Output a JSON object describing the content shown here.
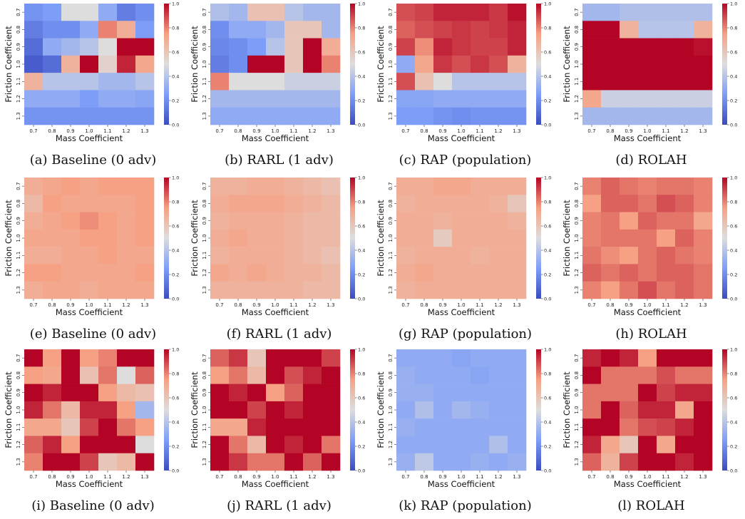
{
  "chart_data": [
    {
      "type": "heatmap",
      "caption": "(a) Baseline (0 adv)",
      "xlabel": "Mass Coefficient",
      "ylabel": "Friction Coefficient",
      "x": [
        "0.7",
        "0.8",
        "0.9",
        "1.0",
        "1.1",
        "1.2",
        "1.3"
      ],
      "y": [
        "0.7",
        "0.8",
        "0.9",
        "1.0",
        "1.1",
        "1.2",
        "1.3"
      ],
      "colorbar": {
        "min": 0.0,
        "max": 1.0,
        "ticks": [
          "0.0",
          "0.2",
          "0.4",
          "0.6",
          "0.8",
          "1.0"
        ],
        "colormap": "coolwarm"
      },
      "values": [
        [
          0.22,
          0.25,
          0.5,
          0.5,
          0.3,
          0.15,
          0.2
        ],
        [
          0.15,
          0.2,
          0.2,
          0.3,
          0.8,
          0.7,
          0.25
        ],
        [
          0.1,
          0.3,
          0.35,
          0.4,
          0.5,
          1.0,
          1.0
        ],
        [
          0.05,
          0.1,
          0.68,
          1.0,
          0.55,
          0.95,
          0.72
        ],
        [
          0.68,
          0.4,
          0.4,
          0.4,
          0.35,
          0.35,
          0.4
        ],
        [
          0.3,
          0.3,
          0.3,
          0.25,
          0.3,
          0.3,
          0.28
        ],
        [
          0.22,
          0.22,
          0.22,
          0.22,
          0.22,
          0.22,
          0.22
        ]
      ]
    },
    {
      "type": "heatmap",
      "caption": "(b) RARL (1 adv)",
      "xlabel": "Mass Coefficient",
      "ylabel": "Friction Coefficient",
      "x": [
        "0.7",
        "0.8",
        "0.9",
        "1.0",
        "1.1",
        "1.2",
        "1.3"
      ],
      "y": [
        "0.7",
        "0.8",
        "0.9",
        "1.0",
        "1.1",
        "1.2",
        "1.3"
      ],
      "colorbar": {
        "min": 0.0,
        "max": 1.0,
        "ticks": [
          "0.0",
          "0.2",
          "0.4",
          "0.6",
          "0.8",
          "1.0"
        ],
        "colormap": "coolwarm"
      },
      "values": [
        [
          0.38,
          0.35,
          0.62,
          0.62,
          0.4,
          0.35,
          0.35
        ],
        [
          0.2,
          0.3,
          0.3,
          0.35,
          0.6,
          0.6,
          0.35
        ],
        [
          0.18,
          0.2,
          0.25,
          0.4,
          0.6,
          1.0,
          0.7
        ],
        [
          0.15,
          0.2,
          1.0,
          1.0,
          0.6,
          1.0,
          0.8
        ],
        [
          0.8,
          0.5,
          0.5,
          0.5,
          0.45,
          0.45,
          0.45
        ],
        [
          0.35,
          0.35,
          0.35,
          0.35,
          0.35,
          0.35,
          0.35
        ],
        [
          0.3,
          0.3,
          0.3,
          0.3,
          0.3,
          0.3,
          0.3
        ]
      ]
    },
    {
      "type": "heatmap",
      "caption": "(c) RAP (population)",
      "xlabel": "Mass Coefficient",
      "ylabel": "Friction Coefficient",
      "x": [
        "0.7",
        "0.8",
        "0.9",
        "1.0",
        "1.1",
        "1.2",
        "1.3"
      ],
      "y": [
        "0.7",
        "0.8",
        "0.9",
        "1.0",
        "1.1",
        "1.2",
        "1.3"
      ],
      "colorbar": {
        "min": 0.0,
        "max": 1.0,
        "ticks": [
          "0.0",
          "0.2",
          "0.4",
          "0.6",
          "0.8",
          "1.0"
        ],
        "colormap": "coolwarm"
      },
      "values": [
        [
          0.88,
          0.9,
          0.95,
          0.95,
          0.95,
          0.92,
          0.98
        ],
        [
          0.85,
          0.88,
          0.9,
          0.92,
          0.9,
          0.92,
          0.95
        ],
        [
          0.9,
          0.78,
          0.95,
          0.92,
          0.9,
          0.9,
          0.95
        ],
        [
          0.3,
          0.72,
          0.92,
          0.88,
          0.92,
          0.88,
          0.68
        ],
        [
          0.88,
          0.62,
          0.5,
          0.4,
          0.4,
          0.4,
          0.4
        ],
        [
          0.28,
          0.28,
          0.3,
          0.3,
          0.3,
          0.3,
          0.3
        ],
        [
          0.25,
          0.25,
          0.22,
          0.2,
          0.22,
          0.22,
          0.22
        ]
      ]
    },
    {
      "type": "heatmap",
      "caption": "(d) ROLAH",
      "xlabel": "Mass Coefficient",
      "ylabel": "Friction Coefficient",
      "x": [
        "0.7",
        "0.8",
        "0.9",
        "1.0",
        "1.1",
        "1.2",
        "1.3"
      ],
      "y": [
        "0.7",
        "0.8",
        "0.9",
        "1.0",
        "1.1",
        "1.2",
        "1.3"
      ],
      "colorbar": {
        "min": 0.0,
        "max": 1.0,
        "ticks": [
          "0.0",
          "0.2",
          "0.4",
          "0.6",
          "0.8",
          "1.0"
        ],
        "colormap": "coolwarm"
      },
      "values": [
        [
          0.35,
          0.35,
          0.38,
          0.38,
          0.38,
          0.38,
          0.38
        ],
        [
          1.0,
          1.0,
          0.68,
          0.4,
          0.4,
          0.4,
          0.68
        ],
        [
          1.0,
          1.0,
          1.0,
          1.0,
          1.0,
          1.0,
          0.98
        ],
        [
          1.0,
          1.0,
          1.0,
          1.0,
          1.0,
          1.0,
          1.0
        ],
        [
          1.0,
          1.0,
          1.0,
          1.0,
          1.0,
          1.0,
          1.0
        ],
        [
          0.72,
          0.45,
          0.45,
          0.45,
          0.45,
          0.45,
          0.45
        ],
        [
          0.35,
          0.35,
          0.35,
          0.35,
          0.35,
          0.35,
          0.35
        ]
      ]
    },
    {
      "type": "heatmap",
      "caption": "(e) Baseline (0 adv)",
      "xlabel": "Mass Coefficient",
      "ylabel": "Friction Coefficient",
      "x": [
        "0.7",
        "0.8",
        "0.9",
        "1.0",
        "1.1",
        "1.2",
        "1.3"
      ],
      "y": [
        "0.7",
        "0.8",
        "0.9",
        "1.0",
        "1.1",
        "1.2",
        "1.3"
      ],
      "colorbar": {
        "min": 0.0,
        "max": 1.0,
        "ticks": [
          "0.0",
          "0.2",
          "0.4",
          "0.6",
          "0.8",
          "1.0"
        ],
        "colormap": "coolwarm"
      },
      "values": [
        [
          0.7,
          0.72,
          0.75,
          0.72,
          0.75,
          0.75,
          0.75
        ],
        [
          0.65,
          0.75,
          0.72,
          0.72,
          0.72,
          0.72,
          0.75
        ],
        [
          0.7,
          0.72,
          0.75,
          0.78,
          0.75,
          0.72,
          0.75
        ],
        [
          0.72,
          0.72,
          0.72,
          0.75,
          0.75,
          0.72,
          0.75
        ],
        [
          0.7,
          0.7,
          0.72,
          0.72,
          0.75,
          0.72,
          0.72
        ],
        [
          0.75,
          0.75,
          0.72,
          0.72,
          0.72,
          0.72,
          0.75
        ],
        [
          0.7,
          0.72,
          0.72,
          0.7,
          0.72,
          0.72,
          0.72
        ]
      ]
    },
    {
      "type": "heatmap",
      "caption": "(f) RARL (1 adv)",
      "xlabel": "Mass Coefficient",
      "ylabel": "Friction Coefficient",
      "x": [
        "0.7",
        "0.8",
        "0.9",
        "1.0",
        "1.1",
        "1.2",
        "1.3"
      ],
      "y": [
        "0.7",
        "0.8",
        "0.9",
        "1.0",
        "1.1",
        "1.2",
        "1.3"
      ],
      "colorbar": {
        "min": 0.0,
        "max": 1.0,
        "ticks": [
          "0.0",
          "0.2",
          "0.4",
          "0.6",
          "0.8",
          "1.0"
        ],
        "colormap": "coolwarm"
      },
      "values": [
        [
          0.68,
          0.68,
          0.7,
          0.7,
          0.68,
          0.65,
          0.62
        ],
        [
          0.7,
          0.72,
          0.72,
          0.72,
          0.7,
          0.68,
          0.65
        ],
        [
          0.68,
          0.7,
          0.7,
          0.7,
          0.68,
          0.65,
          0.65
        ],
        [
          0.7,
          0.72,
          0.7,
          0.7,
          0.68,
          0.65,
          0.65
        ],
        [
          0.68,
          0.7,
          0.7,
          0.7,
          0.68,
          0.65,
          0.62
        ],
        [
          0.72,
          0.7,
          0.72,
          0.7,
          0.68,
          0.68,
          0.65
        ],
        [
          0.68,
          0.68,
          0.68,
          0.68,
          0.68,
          0.65,
          0.65
        ]
      ]
    },
    {
      "type": "heatmap",
      "caption": "(g) RAP (population)",
      "xlabel": "Mass Coefficient",
      "ylabel": "Friction Coefficient",
      "x": [
        "0.7",
        "0.8",
        "0.9",
        "1.0",
        "1.1",
        "1.2",
        "1.3"
      ],
      "y": [
        "0.7",
        "0.8",
        "0.9",
        "1.0",
        "1.1",
        "1.2",
        "1.3"
      ],
      "colorbar": {
        "min": 0.0,
        "max": 1.0,
        "ticks": [
          "0.0",
          "0.2",
          "0.4",
          "0.6",
          "0.8",
          "1.0"
        ],
        "colormap": "coolwarm"
      },
      "values": [
        [
          0.7,
          0.7,
          0.72,
          0.72,
          0.7,
          0.7,
          0.7
        ],
        [
          0.68,
          0.7,
          0.7,
          0.7,
          0.7,
          0.68,
          0.6
        ],
        [
          0.7,
          0.7,
          0.68,
          0.7,
          0.7,
          0.7,
          0.68
        ],
        [
          0.7,
          0.7,
          0.58,
          0.7,
          0.7,
          0.7,
          0.7
        ],
        [
          0.68,
          0.7,
          0.7,
          0.7,
          0.68,
          0.7,
          0.7
        ],
        [
          0.7,
          0.72,
          0.7,
          0.7,
          0.7,
          0.7,
          0.7
        ],
        [
          0.68,
          0.7,
          0.7,
          0.7,
          0.7,
          0.7,
          0.7
        ]
      ]
    },
    {
      "type": "heatmap",
      "caption": "(h) ROLAH",
      "xlabel": "Mass Coefficient",
      "ylabel": "Friction Coefficient",
      "x": [
        "0.7",
        "0.8",
        "0.9",
        "1.0",
        "1.1",
        "1.2",
        "1.3"
      ],
      "y": [
        "0.7",
        "0.8",
        "0.9",
        "1.0",
        "1.1",
        "1.2",
        "1.3"
      ],
      "colorbar": {
        "min": 0.0,
        "max": 1.0,
        "ticks": [
          "0.0",
          "0.2",
          "0.4",
          "0.6",
          "0.8",
          "1.0"
        ],
        "colormap": "coolwarm"
      },
      "values": [
        [
          0.8,
          0.85,
          0.82,
          0.8,
          0.82,
          0.82,
          0.8
        ],
        [
          0.75,
          0.85,
          0.85,
          0.82,
          0.88,
          0.85,
          0.8
        ],
        [
          0.8,
          0.82,
          0.75,
          0.85,
          0.82,
          0.82,
          0.72
        ],
        [
          0.8,
          0.82,
          0.82,
          0.82,
          0.75,
          0.85,
          0.8
        ],
        [
          0.82,
          0.78,
          0.75,
          0.82,
          0.85,
          0.82,
          0.8
        ],
        [
          0.85,
          0.82,
          0.85,
          0.82,
          0.85,
          0.85,
          0.82
        ],
        [
          0.8,
          0.75,
          0.82,
          0.88,
          0.82,
          0.85,
          0.82
        ]
      ]
    },
    {
      "type": "heatmap",
      "caption": "(i) Baseline (0 adv)",
      "xlabel": "Mass Coefficient",
      "ylabel": "Friction Coefficient",
      "x": [
        "0.7",
        "0.8",
        "0.9",
        "1.0",
        "1.1",
        "1.2",
        "1.3"
      ],
      "y": [
        "0.7",
        "0.8",
        "0.9",
        "1.0",
        "1.1",
        "1.2",
        "1.3"
      ],
      "colorbar": {
        "min": 0.0,
        "max": 1.0,
        "ticks": [
          "0.0",
          "0.2",
          "0.4",
          "0.6",
          "0.8",
          "1.0"
        ],
        "colormap": "coolwarm"
      },
      "values": [
        [
          1.0,
          0.75,
          1.0,
          0.75,
          0.8,
          1.0,
          1.0
        ],
        [
          0.75,
          0.72,
          1.0,
          0.62,
          0.82,
          0.5,
          0.85
        ],
        [
          1.0,
          0.95,
          1.0,
          1.0,
          0.75,
          0.65,
          0.62
        ],
        [
          0.95,
          0.82,
          0.65,
          0.95,
          0.95,
          0.75,
          0.35
        ],
        [
          0.72,
          0.72,
          0.6,
          0.9,
          1.0,
          0.82,
          0.75
        ],
        [
          0.85,
          0.95,
          0.75,
          1.0,
          1.0,
          1.0,
          0.5
        ],
        [
          0.8,
          1.0,
          1.0,
          0.9,
          0.6,
          0.65,
          1.0
        ]
      ]
    },
    {
      "type": "heatmap",
      "caption": "(j) RARL (1 adv)",
      "xlabel": "Mass Coefficient",
      "ylabel": "Friction Coefficient",
      "x": [
        "0.7",
        "0.8",
        "0.9",
        "1.0",
        "1.1",
        "1.2",
        "1.3"
      ],
      "y": [
        "0.7",
        "0.8",
        "0.9",
        "1.0",
        "1.1",
        "1.2",
        "1.3"
      ],
      "colorbar": {
        "min": 0.0,
        "max": 1.0,
        "ticks": [
          "0.0",
          "0.2",
          "0.4",
          "0.6",
          "0.8",
          "1.0"
        ],
        "colormap": "coolwarm"
      },
      "values": [
        [
          0.85,
          0.92,
          0.6,
          1.0,
          1.0,
          1.0,
          0.9
        ],
        [
          0.75,
          0.82,
          0.65,
          1.0,
          0.88,
          0.95,
          1.0
        ],
        [
          1.0,
          0.95,
          1.0,
          0.75,
          0.85,
          1.0,
          1.0
        ],
        [
          1.0,
          1.0,
          0.9,
          1.0,
          0.95,
          1.0,
          1.0
        ],
        [
          0.72,
          0.72,
          0.95,
          1.0,
          1.0,
          1.0,
          1.0
        ],
        [
          1.0,
          0.82,
          0.65,
          1.0,
          0.95,
          1.0,
          0.82
        ],
        [
          1.0,
          0.92,
          0.82,
          0.82,
          1.0,
          0.85,
          1.0
        ]
      ]
    },
    {
      "type": "heatmap",
      "caption": "(k) RAP (population)",
      "xlabel": "Mass Coefficient",
      "ylabel": "Friction Coefficient",
      "x": [
        "0.7",
        "0.8",
        "0.9",
        "1.0",
        "1.1",
        "1.2",
        "1.3"
      ],
      "y": [
        "0.7",
        "0.8",
        "0.9",
        "1.0",
        "1.1",
        "1.2",
        "1.3"
      ],
      "colorbar": {
        "min": 0.0,
        "max": 1.0,
        "ticks": [
          "0.0",
          "0.2",
          "0.4",
          "0.6",
          "0.8",
          "1.0"
        ],
        "colormap": "coolwarm"
      },
      "values": [
        [
          0.3,
          0.3,
          0.3,
          0.28,
          0.3,
          0.3,
          0.3
        ],
        [
          0.32,
          0.3,
          0.3,
          0.3,
          0.28,
          0.3,
          0.3
        ],
        [
          0.32,
          0.32,
          0.3,
          0.3,
          0.3,
          0.3,
          0.3
        ],
        [
          0.3,
          0.38,
          0.3,
          0.35,
          0.32,
          0.3,
          0.3
        ],
        [
          0.32,
          0.3,
          0.3,
          0.3,
          0.3,
          0.3,
          0.3
        ],
        [
          0.3,
          0.3,
          0.3,
          0.3,
          0.3,
          0.38,
          0.3
        ],
        [
          0.32,
          0.42,
          0.3,
          0.3,
          0.32,
          0.3,
          0.32
        ]
      ]
    },
    {
      "type": "heatmap",
      "caption": "(l) ROLAH",
      "xlabel": "Mass Coefficient",
      "ylabel": "Friction Coefficient",
      "x": [
        "0.7",
        "0.8",
        "0.9",
        "1.0",
        "1.1",
        "1.2",
        "1.3"
      ],
      "y": [
        "0.7",
        "0.8",
        "0.9",
        "1.0",
        "1.1",
        "1.2",
        "1.3"
      ],
      "colorbar": {
        "min": 0.0,
        "max": 1.0,
        "ticks": [
          "0.0",
          "0.2",
          "0.4",
          "0.6",
          "0.8",
          "1.0"
        ],
        "colormap": "coolwarm"
      },
      "values": [
        [
          0.95,
          1.0,
          0.95,
          0.75,
          1.0,
          1.0,
          1.0
        ],
        [
          1.0,
          0.82,
          0.82,
          0.82,
          0.88,
          0.82,
          0.82
        ],
        [
          0.82,
          0.82,
          0.82,
          1.0,
          0.9,
          0.95,
          0.95
        ],
        [
          0.82,
          1.0,
          0.85,
          0.95,
          0.95,
          0.72,
          1.0
        ],
        [
          1.0,
          1.0,
          0.82,
          0.88,
          0.9,
          0.95,
          1.0
        ],
        [
          0.95,
          0.72,
          0.6,
          1.0,
          0.72,
          1.0,
          1.0
        ],
        [
          0.85,
          0.68,
          0.9,
          1.0,
          1.0,
          0.95,
          1.0
        ]
      ]
    }
  ]
}
